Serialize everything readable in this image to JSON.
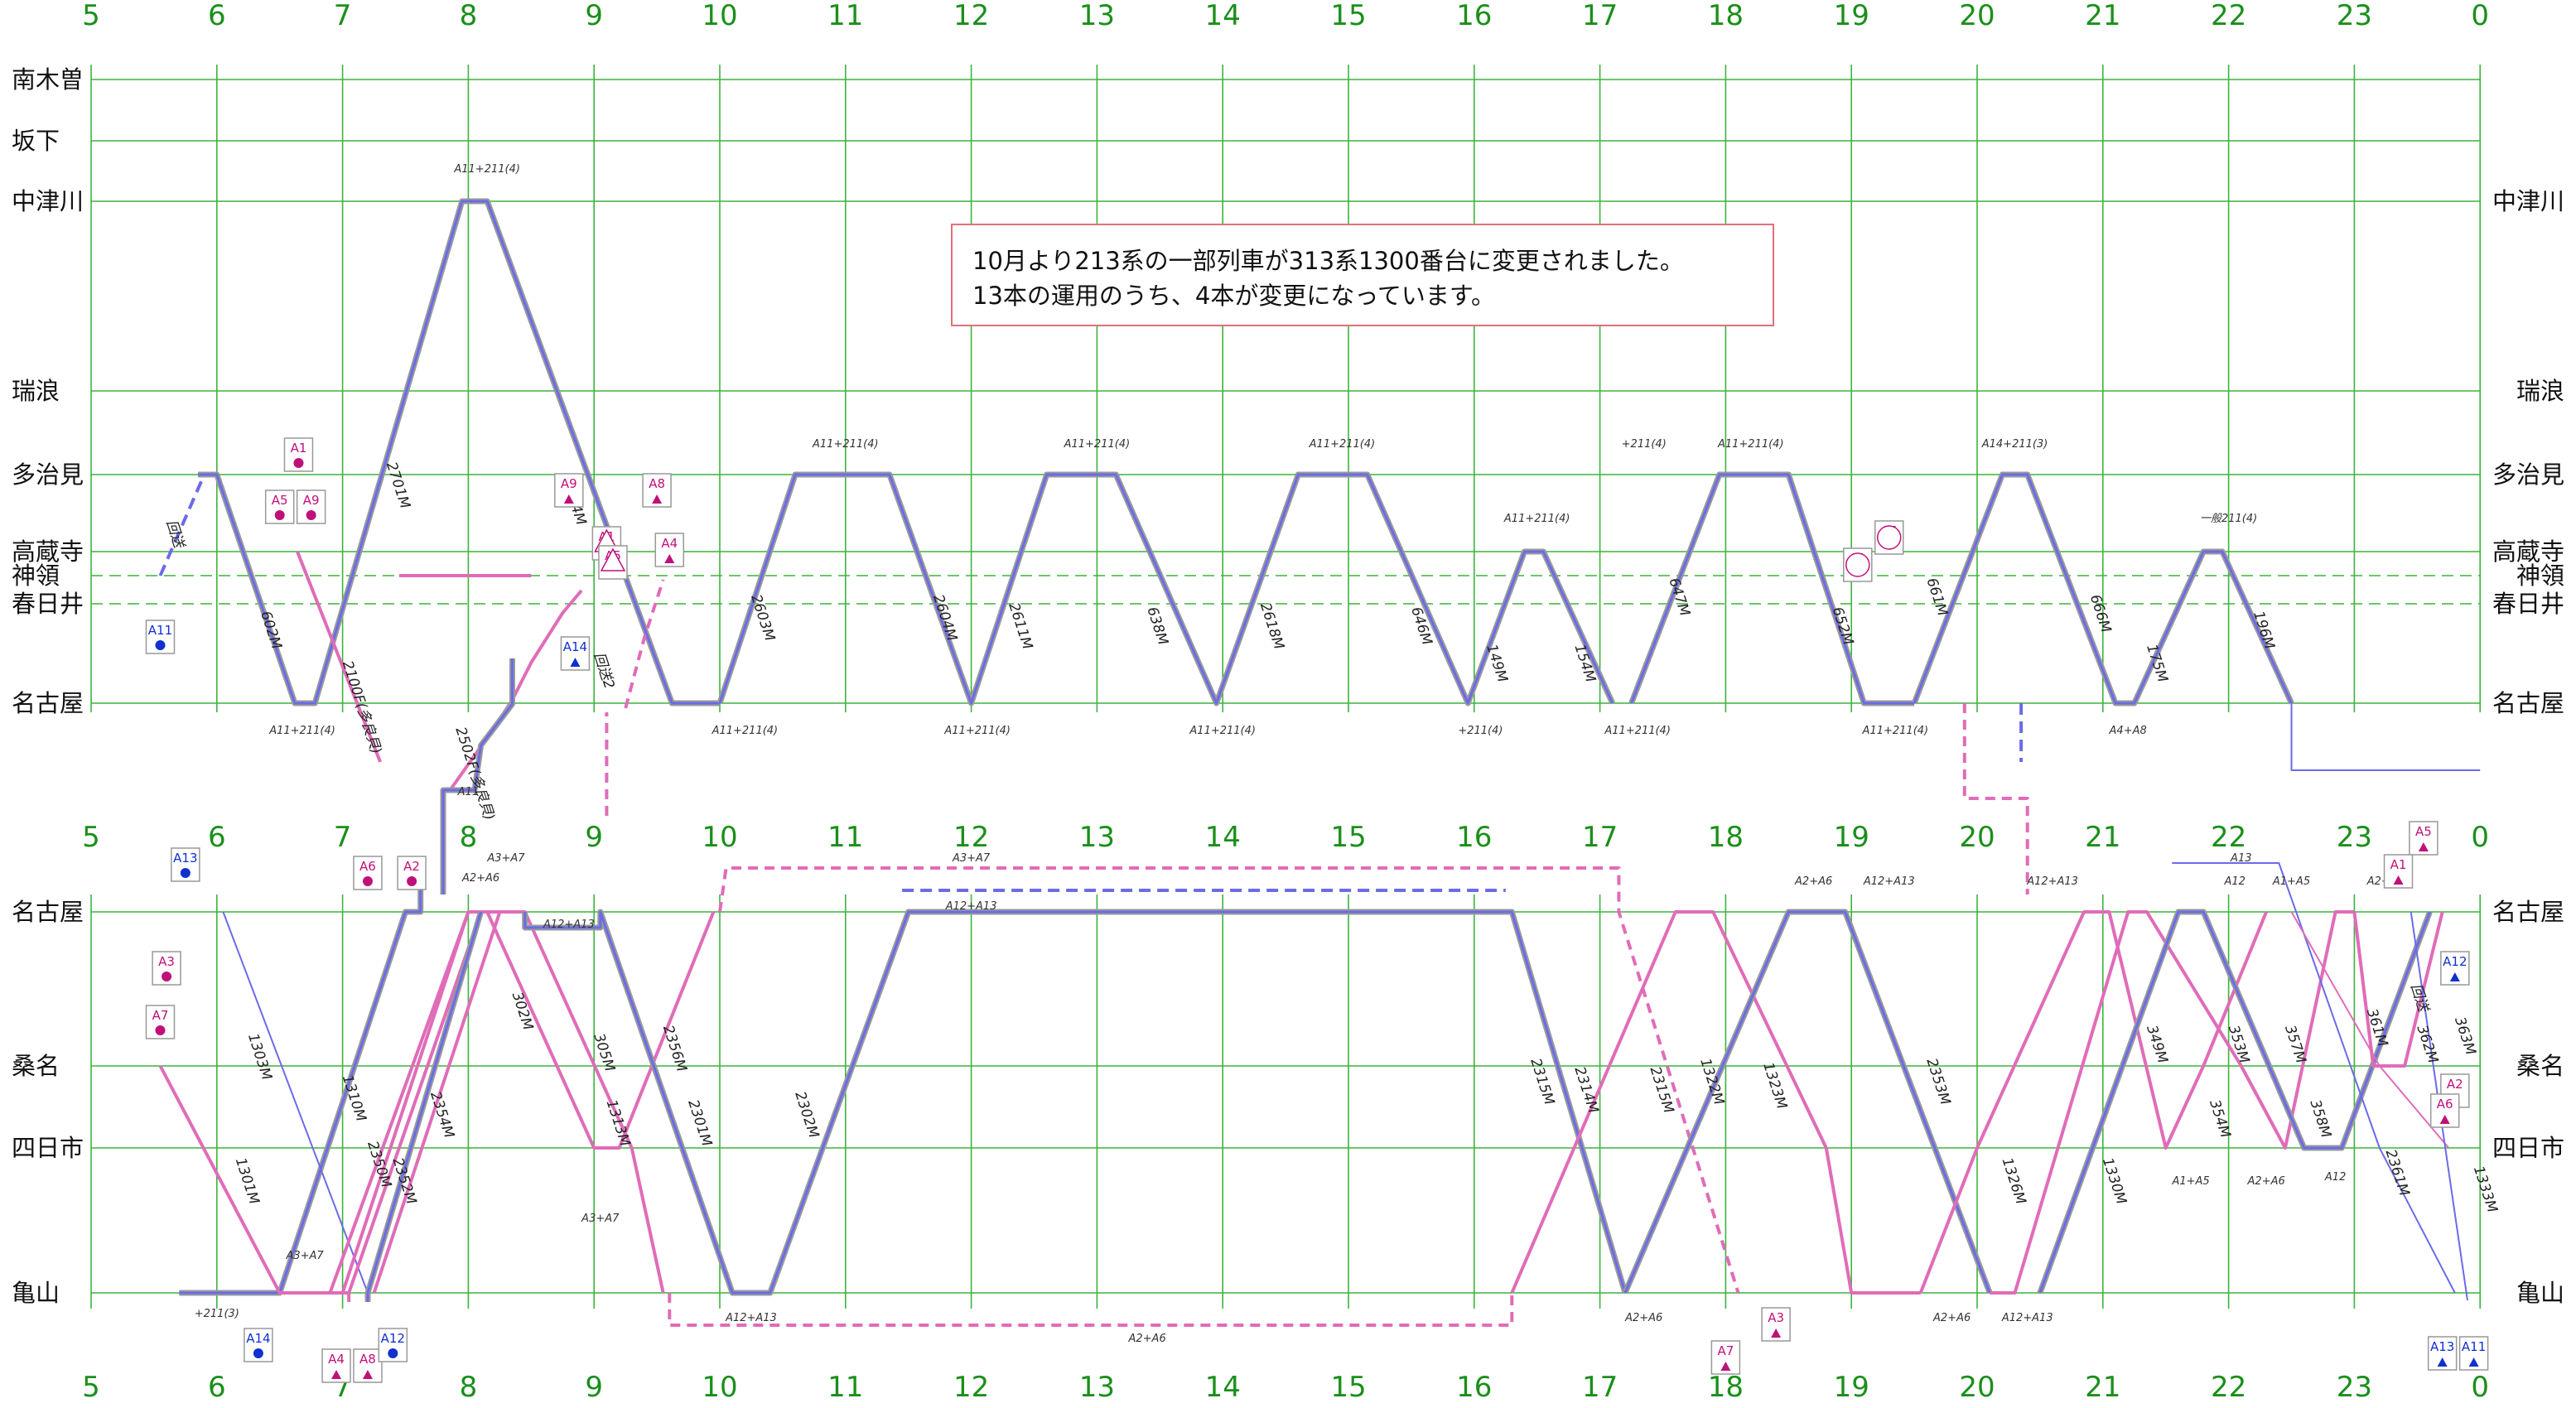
{
  "hours": [
    "5",
    "6",
    "7",
    "8",
    "9",
    "10",
    "11",
    "12",
    "13",
    "14",
    "15",
    "16",
    "17",
    "18",
    "19",
    "20",
    "21",
    "22",
    "23",
    "0"
  ],
  "top_panel": {
    "stations": [
      "南木曽",
      "坂下",
      "中津川",
      "瑞浪",
      "多治見",
      "高蔵寺",
      "神領",
      "春日井",
      "名古屋"
    ]
  },
  "bottom_panel": {
    "stations": [
      "名古屋",
      "桑名",
      "四日市",
      "亀山"
    ]
  },
  "notice": {
    "line1": "10月より213系の一部列車が313系1300番台に変更されました。",
    "line2": "13本の運用のうち、4本が変更になっています。"
  },
  "colors": {
    "grid": "#3cb43c",
    "hour_text": "#1a8f1a",
    "set_313": "#6b6be8",
    "set_313_outline": "#9a9a9a",
    "set_211": "#e06cb8",
    "marker_blue": "#1030d0",
    "marker_magenta": "#c0107a"
  },
  "chart_data": {
    "type": "train-diagram",
    "x_axis": "hour",
    "top": {
      "stations": [
        "南木曽",
        "坂下",
        "中津川",
        "瑞浪",
        "多治見",
        "高蔵寺",
        "神領",
        "春日井",
        "名古屋"
      ],
      "train_labels": [
        "2701M",
        "2714M",
        "602M",
        "2100F(多良貝)",
        "2502F(多良貝)",
        "2603M",
        "2604M",
        "2611M",
        "638M",
        "2618M",
        "646M",
        "149M",
        "154M",
        "647M",
        "652M",
        "661M",
        "666M",
        "175M",
        "196M",
        "回送",
        "回送2"
      ],
      "set_labels": [
        "A11+211(4)",
        "A11+211(4)",
        "A11+211(4)",
        "A11+211(4)",
        "A11+211(4)",
        "A11+211(4)",
        "A11+211(4)",
        "A11+211(4)",
        "+211(4)",
        "A11+211(4)",
        "A11+211(4)",
        "+211(4)",
        "A11+211(4)",
        "A11+211(4)",
        "A14+211(3)",
        "A4+A8",
        "一般211(4)",
        "A11"
      ]
    },
    "bottom": {
      "stations": [
        "名古屋",
        "桑名",
        "四日市",
        "亀山"
      ],
      "train_labels": [
        "1303M",
        "1301M",
        "1310M",
        "2350M",
        "2352M",
        "2354M",
        "302M",
        "305M",
        "1313M",
        "2356M",
        "2301M",
        "2302M",
        "2315M",
        "2314M",
        "2315M",
        "1322M",
        "1323M",
        "2353M",
        "1326M",
        "1330M",
        "349M",
        "353M",
        "354M",
        "357M",
        "358M",
        "361M",
        "362M",
        "363M",
        "2361M",
        "1333M",
        "回送"
      ],
      "set_labels": [
        "A3+A7",
        "A2+A6",
        "A3+A7",
        "A12+A13",
        "A3+A7",
        "A12+A13",
        "A3+A7",
        "A12+A13",
        "A2+A6",
        "A2+A6",
        "A12+A13",
        "A2+A6",
        "A12+A13",
        "A2+A6",
        "A12+A13",
        "A13",
        "A12",
        "A1+A5",
        "A2+A6",
        "A1+A5",
        "A2+A6",
        "A12",
        "+211(3)"
      ]
    },
    "unit_markers": [
      "A1",
      "A5",
      "A9",
      "A11",
      "A9",
      "A8",
      "A1",
      "A5",
      "A4",
      "A14",
      "A1",
      "A5",
      "A13",
      "A6",
      "A2",
      "A3",
      "A7",
      "A14",
      "A4",
      "A8",
      "A12",
      "A3",
      "A7",
      "A5",
      "A1",
      "A12",
      "A2",
      "A6",
      "A13",
      "A11"
    ]
  }
}
